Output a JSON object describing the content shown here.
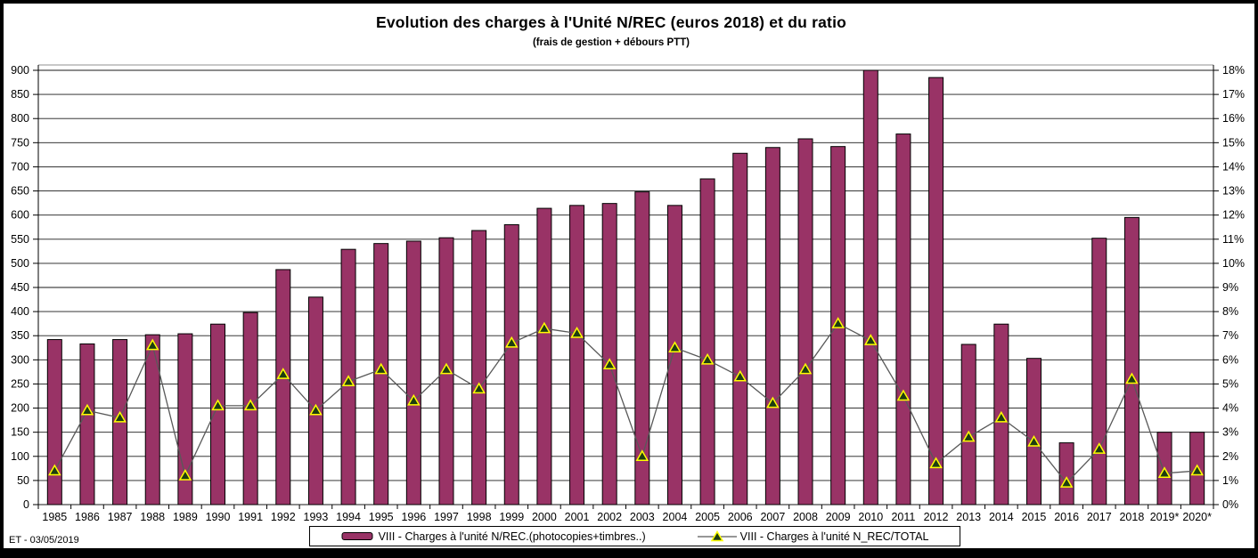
{
  "header": {
    "title": "Evolution des charges à l'Unité N/REC (euros 2018) et du ratio",
    "subtitle": "(frais de gestion + débours PTT)"
  },
  "footer": {
    "note": "ET -  03/05/2019"
  },
  "colors": {
    "bar_fill": "#993366",
    "bar_border": "#000000",
    "line": "#595959",
    "marker_fill": "#1d3d10",
    "marker_border": "#ffff00",
    "grid": "#1a1a1a",
    "plot_top_border": "#a6a6a6",
    "frame": "#000000",
    "background": "#ffffff"
  },
  "chart_data": {
    "type": "bar",
    "title": "Evolution des charges à l'Unité N/REC (euros 2018) et du ratio",
    "subtitle": "(frais de gestion + débours PTT)",
    "grid": true,
    "legend_position": "bottom",
    "categories": [
      "1985",
      "1986",
      "1987",
      "1988",
      "1989",
      "1990",
      "1991",
      "1992",
      "1993",
      "1994",
      "1995",
      "1996",
      "1997",
      "1998",
      "1999",
      "2000",
      "2001",
      "2002",
      "2003",
      "2004",
      "2005",
      "2006",
      "2007",
      "2008",
      "2009",
      "2010",
      "2011",
      "2012",
      "2013",
      "2014",
      "2015",
      "2016",
      "2017",
      "2018",
      "2019*",
      "2020*"
    ],
    "left_axis": {
      "min": 0,
      "max": 900,
      "step": 50
    },
    "right_axis": {
      "min": 0,
      "max": 18,
      "step": 1,
      "format": "percent"
    },
    "series": [
      {
        "name": "VIII - Charges à l'unité N/REC.(photocopies+timbres..)",
        "type": "bar",
        "axis": "left",
        "values": [
          342,
          333,
          342,
          352,
          354,
          374,
          398,
          487,
          430,
          529,
          541,
          546,
          553,
          568,
          580,
          614,
          620,
          624,
          648,
          620,
          675,
          728,
          740,
          758,
          742,
          900,
          768,
          885,
          332,
          374,
          303,
          128,
          552,
          595,
          150,
          150
        ]
      },
      {
        "name": "VIII - Charges à l'unité N_REC/TOTAL",
        "type": "line",
        "axis": "right",
        "values_percent": [
          1.4,
          3.9,
          3.6,
          6.6,
          1.2,
          4.1,
          4.1,
          5.4,
          3.9,
          5.1,
          5.6,
          4.3,
          5.6,
          4.8,
          6.7,
          7.3,
          7.1,
          5.8,
          2.0,
          6.5,
          6.0,
          5.3,
          4.2,
          5.6,
          7.5,
          6.8,
          4.5,
          1.7,
          2.8,
          3.6,
          2.6,
          0.9,
          2.3,
          5.2,
          1.3,
          1.4
        ]
      }
    ]
  }
}
